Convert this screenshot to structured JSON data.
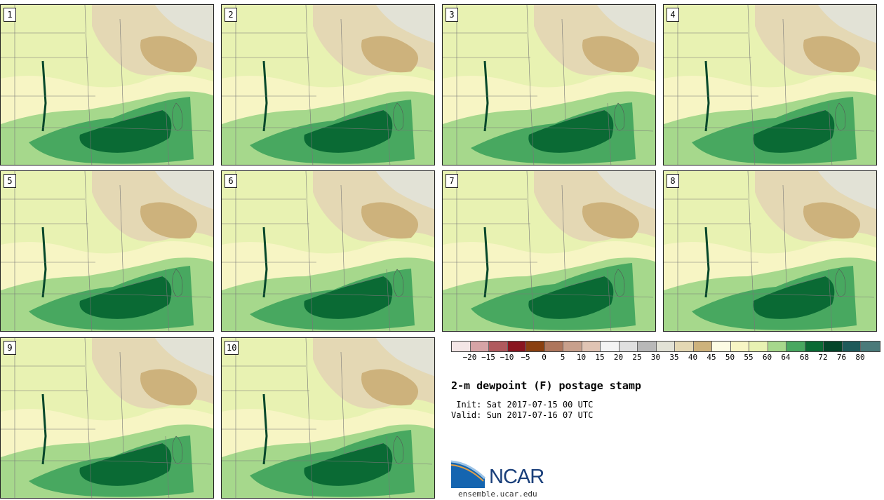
{
  "title": "2-m dewpoint (F) postage stamp",
  "init": " Init: Sat 2017-07-15 00 UTC",
  "valid": "Valid: Sun 2017-07-16 07 UTC",
  "logo": {
    "text": "NCAR",
    "url": "ensemble.ucar.edu"
  },
  "panels": [
    {
      "label": "1"
    },
    {
      "label": "2"
    },
    {
      "label": "3"
    },
    {
      "label": "4"
    },
    {
      "label": "5"
    },
    {
      "label": "6"
    },
    {
      "label": "7"
    },
    {
      "label": "8"
    },
    {
      "label": "9"
    },
    {
      "label": "10"
    }
  ],
  "colorbar": {
    "labels": [
      "−20",
      "−15",
      "−10",
      "−5",
      "0",
      "5",
      "10",
      "15",
      "20",
      "25",
      "30",
      "35",
      "40",
      "45",
      "50",
      "55",
      "60",
      "64",
      "68",
      "72",
      "76",
      "80"
    ],
    "colors": [
      "#f4e6e6",
      "#d6a4a6",
      "#b05a5e",
      "#8a1620",
      "#8a4010",
      "#ae765c",
      "#c8a08c",
      "#e0c4b4",
      "#f4f4f4",
      "#e0e0e0",
      "#b8b8b8",
      "#e2e2d6",
      "#e4d8b4",
      "#cdb27c",
      "#fdfce4",
      "#f7f5c4",
      "#e8f2b2",
      "#a6d88c",
      "#48a860",
      "#0a6a34",
      "#04462a",
      "#1e5a5a",
      "#4a7a7a"
    ]
  },
  "theme": {
    "brown": "#cdb27c",
    "lightbrown": "#e4d8b4",
    "gray": "#e2e2d6",
    "cream": "#f7f5c4",
    "lightgreen": "#e8f2b2",
    "green1": "#a6d88c",
    "green2": "#48a860",
    "green3": "#0a6a34",
    "green4": "#04462a"
  }
}
